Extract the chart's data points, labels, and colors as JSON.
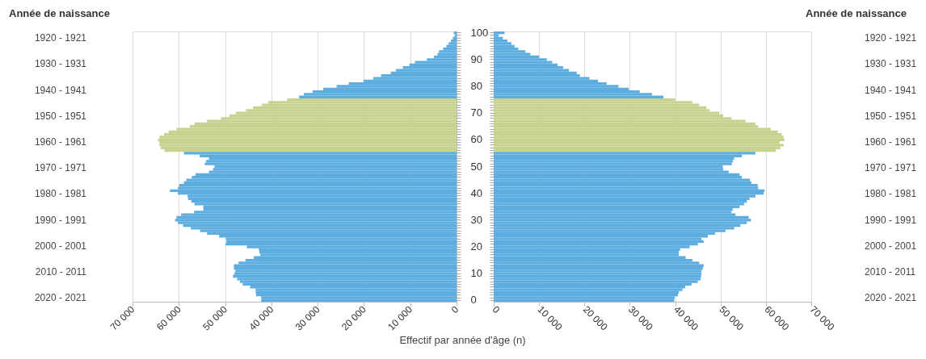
{
  "chart_data": [
    {
      "type": "bar",
      "orientation": "horizontal",
      "xlabel": "Effectif par année d'âge (n)",
      "ylabel": "Année de naissance",
      "grid": "x",
      "categories": [
        "100",
        null,
        null,
        null,
        null,
        null,
        null,
        null,
        null,
        null,
        "90",
        null,
        null,
        null,
        null,
        null,
        null,
        null,
        null,
        null,
        "80",
        null,
        null,
        null,
        null,
        null,
        null,
        null,
        null,
        null,
        "70",
        null,
        null,
        null,
        null,
        null,
        null,
        null,
        null,
        null,
        "60",
        null,
        null,
        null,
        null,
        null,
        null,
        null,
        null,
        null,
        "50",
        null,
        null,
        null,
        null,
        null,
        null,
        null,
        null,
        null,
        "40",
        null,
        null,
        null,
        null,
        null,
        null,
        null,
        null,
        null,
        "30",
        null,
        null,
        null,
        null,
        null,
        null,
        null,
        null,
        null,
        "20",
        null,
        null,
        null,
        null,
        null,
        null,
        null,
        null,
        null,
        "10",
        null,
        null,
        null,
        null,
        null,
        null,
        null,
        null,
        null,
        "0"
      ],
      "values": [
        600,
        400,
        800,
        1200,
        1700,
        2200,
        2900,
        3800,
        4100,
        4900,
        6400,
        9000,
        10200,
        11600,
        13100,
        14200,
        16300,
        18000,
        20100,
        23300,
        25900,
        28800,
        31100,
        33000,
        34000,
        36600,
        40700,
        42100,
        44000,
        45500,
        47700,
        49100,
        50900,
        53900,
        56600,
        57600,
        60500,
        62200,
        63200,
        64200,
        64500,
        64200,
        64200,
        63900,
        63100,
        58900,
        55500,
        53500,
        54100,
        54400,
        52300,
        52600,
        53500,
        56400,
        57200,
        58400,
        58900,
        59900,
        60200,
        61900,
        60200,
        58100,
        58000,
        57300,
        56600,
        54700,
        54700,
        56700,
        59500,
        60500,
        60800,
        60200,
        59100,
        57400,
        55400,
        53900,
        51300,
        49800,
        49700,
        49900,
        45300,
        42700,
        42600,
        42400,
        43800,
        45600,
        47100,
        48100,
        48100,
        47800,
        48000,
        48300,
        47400,
        46800,
        46200,
        44600,
        43400,
        43400,
        43300,
        42200,
        42200
      ],
      "colors": [
        "#5dade0",
        "#5dade0",
        "#5dade0",
        "#5dade0",
        "#5dade0",
        "#5dade0",
        "#5dade0",
        "#5dade0",
        "#5dade0",
        "#5dade0",
        "#5dade0",
        "#5dade0",
        "#5dade0",
        "#5dade0",
        "#5dade0",
        "#5dade0",
        "#5dade0",
        "#5dade0",
        "#5dade0",
        "#5dade0",
        "#5dade0",
        "#5dade0",
        "#5dade0",
        "#5dade0",
        "#5dade0",
        "#c6d38f",
        "#c6d38f",
        "#c6d38f",
        "#c6d38f",
        "#c6d38f",
        "#c6d38f",
        "#c6d38f",
        "#c6d38f",
        "#c6d38f",
        "#c6d38f",
        "#c6d38f",
        "#c6d38f",
        "#c6d38f",
        "#c6d38f",
        "#c6d38f",
        "#c6d38f",
        "#c6d38f",
        "#c6d38f",
        "#c6d38f",
        "#c6d38f",
        "#5dade0",
        "#5dade0",
        "#5dade0",
        "#5dade0",
        "#5dade0",
        "#5dade0",
        "#5dade0",
        "#5dade0",
        "#5dade0",
        "#5dade0",
        "#5dade0",
        "#5dade0",
        "#5dade0",
        "#5dade0",
        "#5dade0",
        "#5dade0",
        "#5dade0",
        "#5dade0",
        "#5dade0",
        "#5dade0",
        "#5dade0",
        "#5dade0",
        "#5dade0",
        "#5dade0",
        "#5dade0",
        "#5dade0",
        "#5dade0",
        "#5dade0",
        "#5dade0",
        "#5dade0",
        "#5dade0",
        "#5dade0",
        "#5dade0",
        "#5dade0",
        "#5dade0",
        "#5dade0",
        "#5dade0",
        "#5dade0",
        "#5dade0",
        "#5dade0",
        "#5dade0",
        "#5dade0",
        "#5dade0",
        "#5dade0",
        "#5dade0",
        "#5dade0",
        "#5dade0",
        "#5dade0",
        "#5dade0",
        "#5dade0",
        "#5dade0",
        "#5dade0",
        "#5dade0",
        "#5dade0",
        "#5dade0",
        "#5dade0"
      ],
      "xlim": [
        70000,
        0
      ],
      "xticks": [
        {
          "value": 70000,
          "label": "70 000"
        },
        {
          "value": 60000,
          "label": "60 000"
        },
        {
          "value": 50000,
          "label": "50 000"
        },
        {
          "value": 40000,
          "label": "40 000"
        },
        {
          "value": 30000,
          "label": "30 000"
        },
        {
          "value": 20000,
          "label": "20 000"
        },
        {
          "value": 10000,
          "label": "10 000"
        },
        0
      ],
      "annotations": [
        "1920 - 1921",
        "1930 - 1931",
        "1940 - 1941",
        "1950 - 1951",
        "1960 - 1961",
        "1970 - 1971",
        "1980 - 1981",
        "1990 - 1991",
        "2000 - 2001",
        "2010 - 2011",
        "2020 - 2021"
      ]
    },
    {
      "type": "bar",
      "orientation": "horizontal",
      "y2label": "Année de naissance",
      "grid": "x",
      "tick_labels": "x",
      "categories": [
        "100",
        null,
        null,
        null,
        null,
        null,
        null,
        null,
        null,
        null,
        "90",
        null,
        null,
        null,
        null,
        null,
        null,
        null,
        null,
        null,
        "80",
        null,
        null,
        null,
        null,
        null,
        null,
        null,
        null,
        null,
        "70",
        null,
        null,
        null,
        null,
        null,
        null,
        null,
        null,
        null,
        "60",
        null,
        null,
        null,
        null,
        null,
        null,
        null,
        null,
        null,
        "50",
        null,
        null,
        null,
        null,
        null,
        null,
        null,
        null,
        null,
        "40",
        null,
        null,
        null,
        null,
        null,
        null,
        null,
        null,
        null,
        "30",
        null,
        null,
        null,
        null,
        null,
        null,
        null,
        null,
        null,
        "20",
        null,
        null,
        null,
        null,
        null,
        null,
        null,
        null,
        null,
        "10",
        null,
        null,
        null,
        null,
        null,
        null,
        null,
        null,
        null,
        "0"
      ],
      "values": [
        2400,
        1100,
        2000,
        3000,
        3900,
        4600,
        5400,
        7000,
        8100,
        10000,
        11700,
        12900,
        14100,
        15300,
        16600,
        18300,
        19000,
        21100,
        23000,
        24900,
        27500,
        29800,
        32200,
        34900,
        37400,
        40000,
        43800,
        45300,
        46900,
        47600,
        49700,
        50600,
        52400,
        55500,
        57700,
        58300,
        61100,
        62600,
        63500,
        63900,
        64100,
        63000,
        63900,
        63200,
        62200,
        57700,
        54700,
        53000,
        52700,
        52500,
        50500,
        50600,
        51800,
        54200,
        54700,
        56500,
        56800,
        58200,
        58300,
        59700,
        59500,
        57700,
        56400,
        55800,
        55200,
        54200,
        52700,
        52400,
        53300,
        56200,
        56700,
        55800,
        54400,
        53000,
        51100,
        48800,
        47200,
        45800,
        46300,
        45000,
        43200,
        41100,
        40800,
        40800,
        42300,
        43800,
        45300,
        46300,
        46100,
        45800,
        45800,
        45700,
        45600,
        45000,
        43600,
        42200,
        41600,
        40800,
        40600,
        39900,
        39800
      ],
      "colors": [
        "#5dade0",
        "#5dade0",
        "#5dade0",
        "#5dade0",
        "#5dade0",
        "#5dade0",
        "#5dade0",
        "#5dade0",
        "#5dade0",
        "#5dade0",
        "#5dade0",
        "#5dade0",
        "#5dade0",
        "#5dade0",
        "#5dade0",
        "#5dade0",
        "#5dade0",
        "#5dade0",
        "#5dade0",
        "#5dade0",
        "#5dade0",
        "#5dade0",
        "#5dade0",
        "#5dade0",
        "#5dade0",
        "#c6d38f",
        "#c6d38f",
        "#c6d38f",
        "#c6d38f",
        "#c6d38f",
        "#c6d38f",
        "#c6d38f",
        "#c6d38f",
        "#c6d38f",
        "#c6d38f",
        "#c6d38f",
        "#c6d38f",
        "#c6d38f",
        "#c6d38f",
        "#c6d38f",
        "#c6d38f",
        "#c6d38f",
        "#c6d38f",
        "#c6d38f",
        "#c6d38f",
        "#5dade0",
        "#5dade0",
        "#5dade0",
        "#5dade0",
        "#5dade0",
        "#5dade0",
        "#5dade0",
        "#5dade0",
        "#5dade0",
        "#5dade0",
        "#5dade0",
        "#5dade0",
        "#5dade0",
        "#5dade0",
        "#5dade0",
        "#5dade0",
        "#5dade0",
        "#5dade0",
        "#5dade0",
        "#5dade0",
        "#5dade0",
        "#5dade0",
        "#5dade0",
        "#5dade0",
        "#5dade0",
        "#5dade0",
        "#5dade0",
        "#5dade0",
        "#5dade0",
        "#5dade0",
        "#5dade0",
        "#5dade0",
        "#5dade0",
        "#5dade0",
        "#5dade0",
        "#5dade0",
        "#5dade0",
        "#5dade0",
        "#5dade0",
        "#5dade0",
        "#5dade0",
        "#5dade0",
        "#5dade0",
        "#5dade0",
        "#5dade0",
        "#5dade0",
        "#5dade0",
        "#5dade0",
        "#5dade0",
        "#5dade0",
        "#5dade0",
        "#5dade0",
        "#5dade0",
        "#5dade0",
        "#5dade0",
        "#5dade0"
      ],
      "xlim": [
        0,
        70000
      ],
      "xticks": [
        0,
        {
          "value": 10000,
          "label": "10 000"
        },
        {
          "value": 20000,
          "label": "20 000"
        },
        {
          "value": 30000,
          "label": "30 000"
        },
        {
          "value": 40000,
          "label": "40 000"
        },
        {
          "value": 50000,
          "label": "50 000"
        },
        {
          "value": 60000,
          "label": "60 000"
        },
        {
          "value": 70000,
          "label": "70 000"
        }
      ],
      "annotations": [
        "1920 - 1921",
        "1930 - 1931",
        "1940 - 1941",
        "1950 - 1951",
        "1960 - 1961",
        "1970 - 1971",
        "1980 - 1981",
        "1990 - 1991",
        "2000 - 2001",
        "2010 - 2011",
        "2020 - 2021"
      ]
    }
  ]
}
